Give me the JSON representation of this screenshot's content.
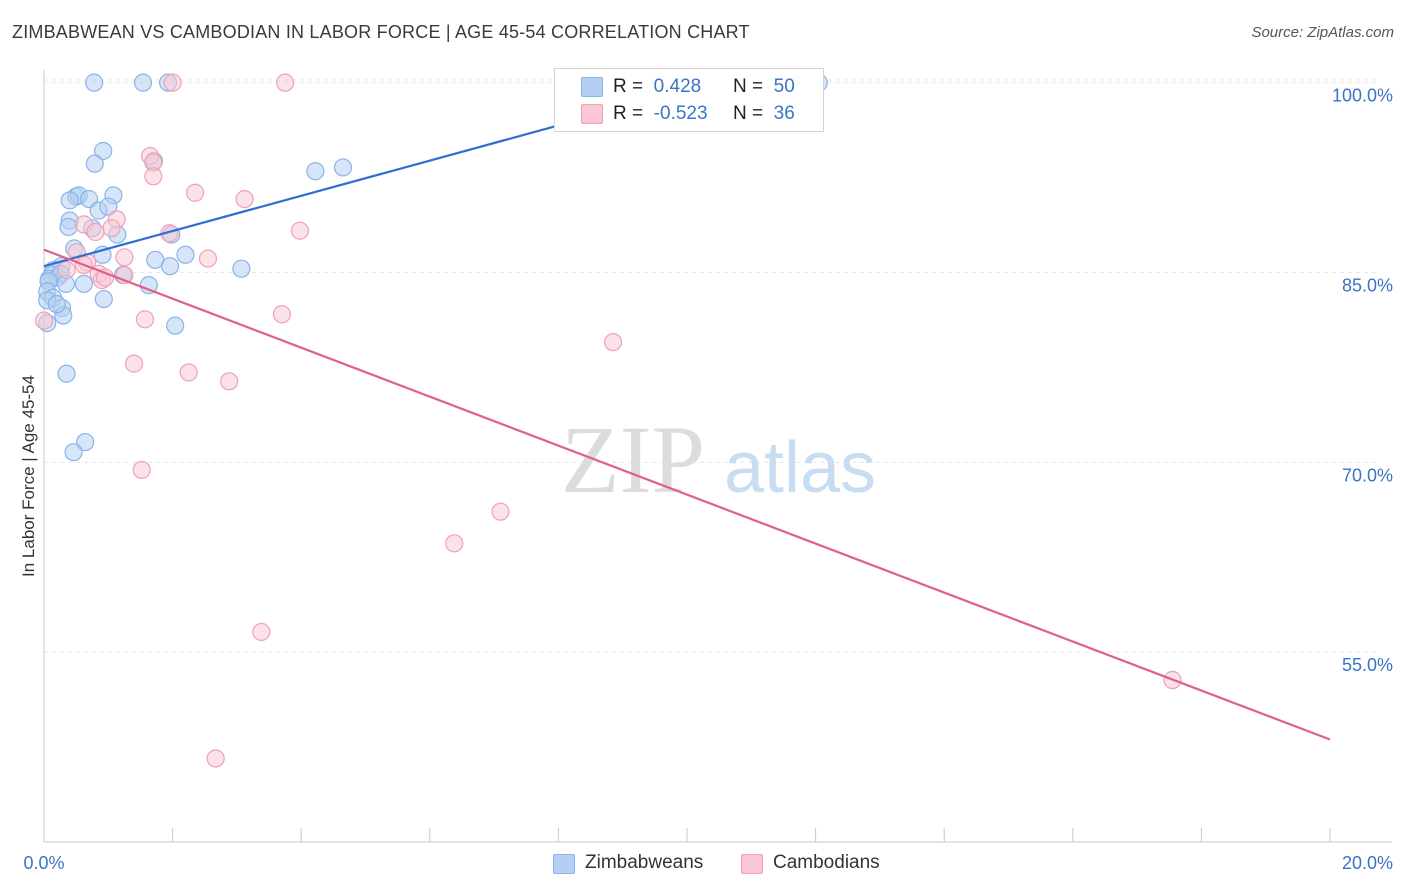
{
  "header": {
    "title": "ZIMBABWEAN VS CAMBODIAN IN LABOR FORCE | AGE 45-54 CORRELATION CHART",
    "source": "Source: ZipAtlas.com"
  },
  "watermark": {
    "zip": "ZIP",
    "atlas": "atlas"
  },
  "legend": {
    "r_label": "R =",
    "n_label": "N =",
    "series": [
      {
        "name": "Zimbabweans",
        "r": "0.428",
        "n": "50",
        "color": "#8ab4e8",
        "fill": "#b5cff2",
        "line": "#2f6fd0"
      },
      {
        "name": "Cambodians",
        "r": "-0.523",
        "n": "36",
        "color": "#f0a0b8",
        "fill": "#f8c8d6",
        "line": "#e0608c"
      }
    ]
  },
  "colors": {
    "axis_label": "#3a74c4",
    "grid": "#e6e6e6"
  },
  "chart_data": {
    "type": "scatter",
    "title": "ZIMBABWEAN VS CAMBODIAN IN LABOR FORCE | AGE 45-54 CORRELATION CHART",
    "xlabel": "",
    "ylabel": "In Labor Force | Age 45-54",
    "xlim": [
      0,
      20
    ],
    "ylim": [
      40,
      101
    ],
    "x_tick_labels": [
      "0.0%",
      "20.0%"
    ],
    "y_ticks": [
      55,
      70,
      85,
      100
    ],
    "y_tick_labels": [
      "55.0%",
      "70.0%",
      "85.0%",
      "100.0%"
    ],
    "grid": true,
    "series": [
      {
        "name": "Zimbabweans",
        "trend": {
          "x": [
            0.0,
            10.0
          ],
          "y": [
            85.5,
            99.4
          ]
        },
        "points": [
          [
            0.78,
            100
          ],
          [
            1.54,
            100
          ],
          [
            1.93,
            100
          ],
          [
            12.05,
            100
          ],
          [
            0.92,
            94.6
          ],
          [
            0.79,
            93.6
          ],
          [
            1.71,
            93.8
          ],
          [
            4.22,
            93.0
          ],
          [
            4.65,
            93.3
          ],
          [
            0.5,
            91.0
          ],
          [
            0.54,
            91.1
          ],
          [
            0.7,
            90.8
          ],
          [
            1.08,
            91.1
          ],
          [
            0.4,
            90.7
          ],
          [
            0.85,
            89.9
          ],
          [
            1.0,
            90.2
          ],
          [
            0.4,
            89.1
          ],
          [
            0.38,
            88.6
          ],
          [
            0.75,
            88.5
          ],
          [
            1.14,
            88.0
          ],
          [
            1.98,
            88.0
          ],
          [
            0.47,
            86.9
          ],
          [
            0.91,
            86.4
          ],
          [
            1.73,
            86.0
          ],
          [
            2.2,
            86.4
          ],
          [
            1.96,
            85.5
          ],
          [
            3.07,
            85.3
          ],
          [
            0.27,
            85.5
          ],
          [
            0.15,
            85.2
          ],
          [
            0.12,
            84.8
          ],
          [
            0.21,
            84.6
          ],
          [
            0.08,
            84.5
          ],
          [
            0.26,
            84.9
          ],
          [
            1.23,
            84.8
          ],
          [
            0.07,
            84.3
          ],
          [
            0.34,
            84.1
          ],
          [
            0.62,
            84.1
          ],
          [
            1.63,
            84.0
          ],
          [
            0.05,
            83.5
          ],
          [
            0.14,
            83.0
          ],
          [
            0.05,
            82.8
          ],
          [
            0.93,
            82.9
          ],
          [
            0.28,
            82.2
          ],
          [
            0.3,
            81.6
          ],
          [
            2.04,
            80.8
          ],
          [
            0.05,
            81.0
          ],
          [
            0.35,
            77.0
          ],
          [
            0.64,
            71.6
          ],
          [
            0.46,
            70.8
          ],
          [
            0.2,
            82.5
          ]
        ]
      },
      {
        "name": "Cambodians",
        "trend": {
          "x": [
            0.0,
            20.0
          ],
          "y": [
            86.8,
            48.1
          ]
        },
        "points": [
          [
            2.0,
            100
          ],
          [
            3.75,
            100
          ],
          [
            1.65,
            94.2
          ],
          [
            1.7,
            93.7
          ],
          [
            1.7,
            92.6
          ],
          [
            2.35,
            91.3
          ],
          [
            3.12,
            90.8
          ],
          [
            1.13,
            89.2
          ],
          [
            0.62,
            88.8
          ],
          [
            0.8,
            88.2
          ],
          [
            1.05,
            88.5
          ],
          [
            1.95,
            88.1
          ],
          [
            3.98,
            88.3
          ],
          [
            0.51,
            86.6
          ],
          [
            1.25,
            86.2
          ],
          [
            2.55,
            86.1
          ],
          [
            0.67,
            85.8
          ],
          [
            0.35,
            85.2
          ],
          [
            0.85,
            84.9
          ],
          [
            0.9,
            84.4
          ],
          [
            0.95,
            84.6
          ],
          [
            1.25,
            84.8
          ],
          [
            1.57,
            81.3
          ],
          [
            3.7,
            81.7
          ],
          [
            8.85,
            79.5
          ],
          [
            1.4,
            77.8
          ],
          [
            2.25,
            77.1
          ],
          [
            2.88,
            76.4
          ],
          [
            1.52,
            69.4
          ],
          [
            7.1,
            66.1
          ],
          [
            6.38,
            63.6
          ],
          [
            3.38,
            56.6
          ],
          [
            17.55,
            52.8
          ],
          [
            2.67,
            46.6
          ],
          [
            0.62,
            85.6
          ],
          [
            0.0,
            81.2
          ]
        ]
      }
    ]
  }
}
